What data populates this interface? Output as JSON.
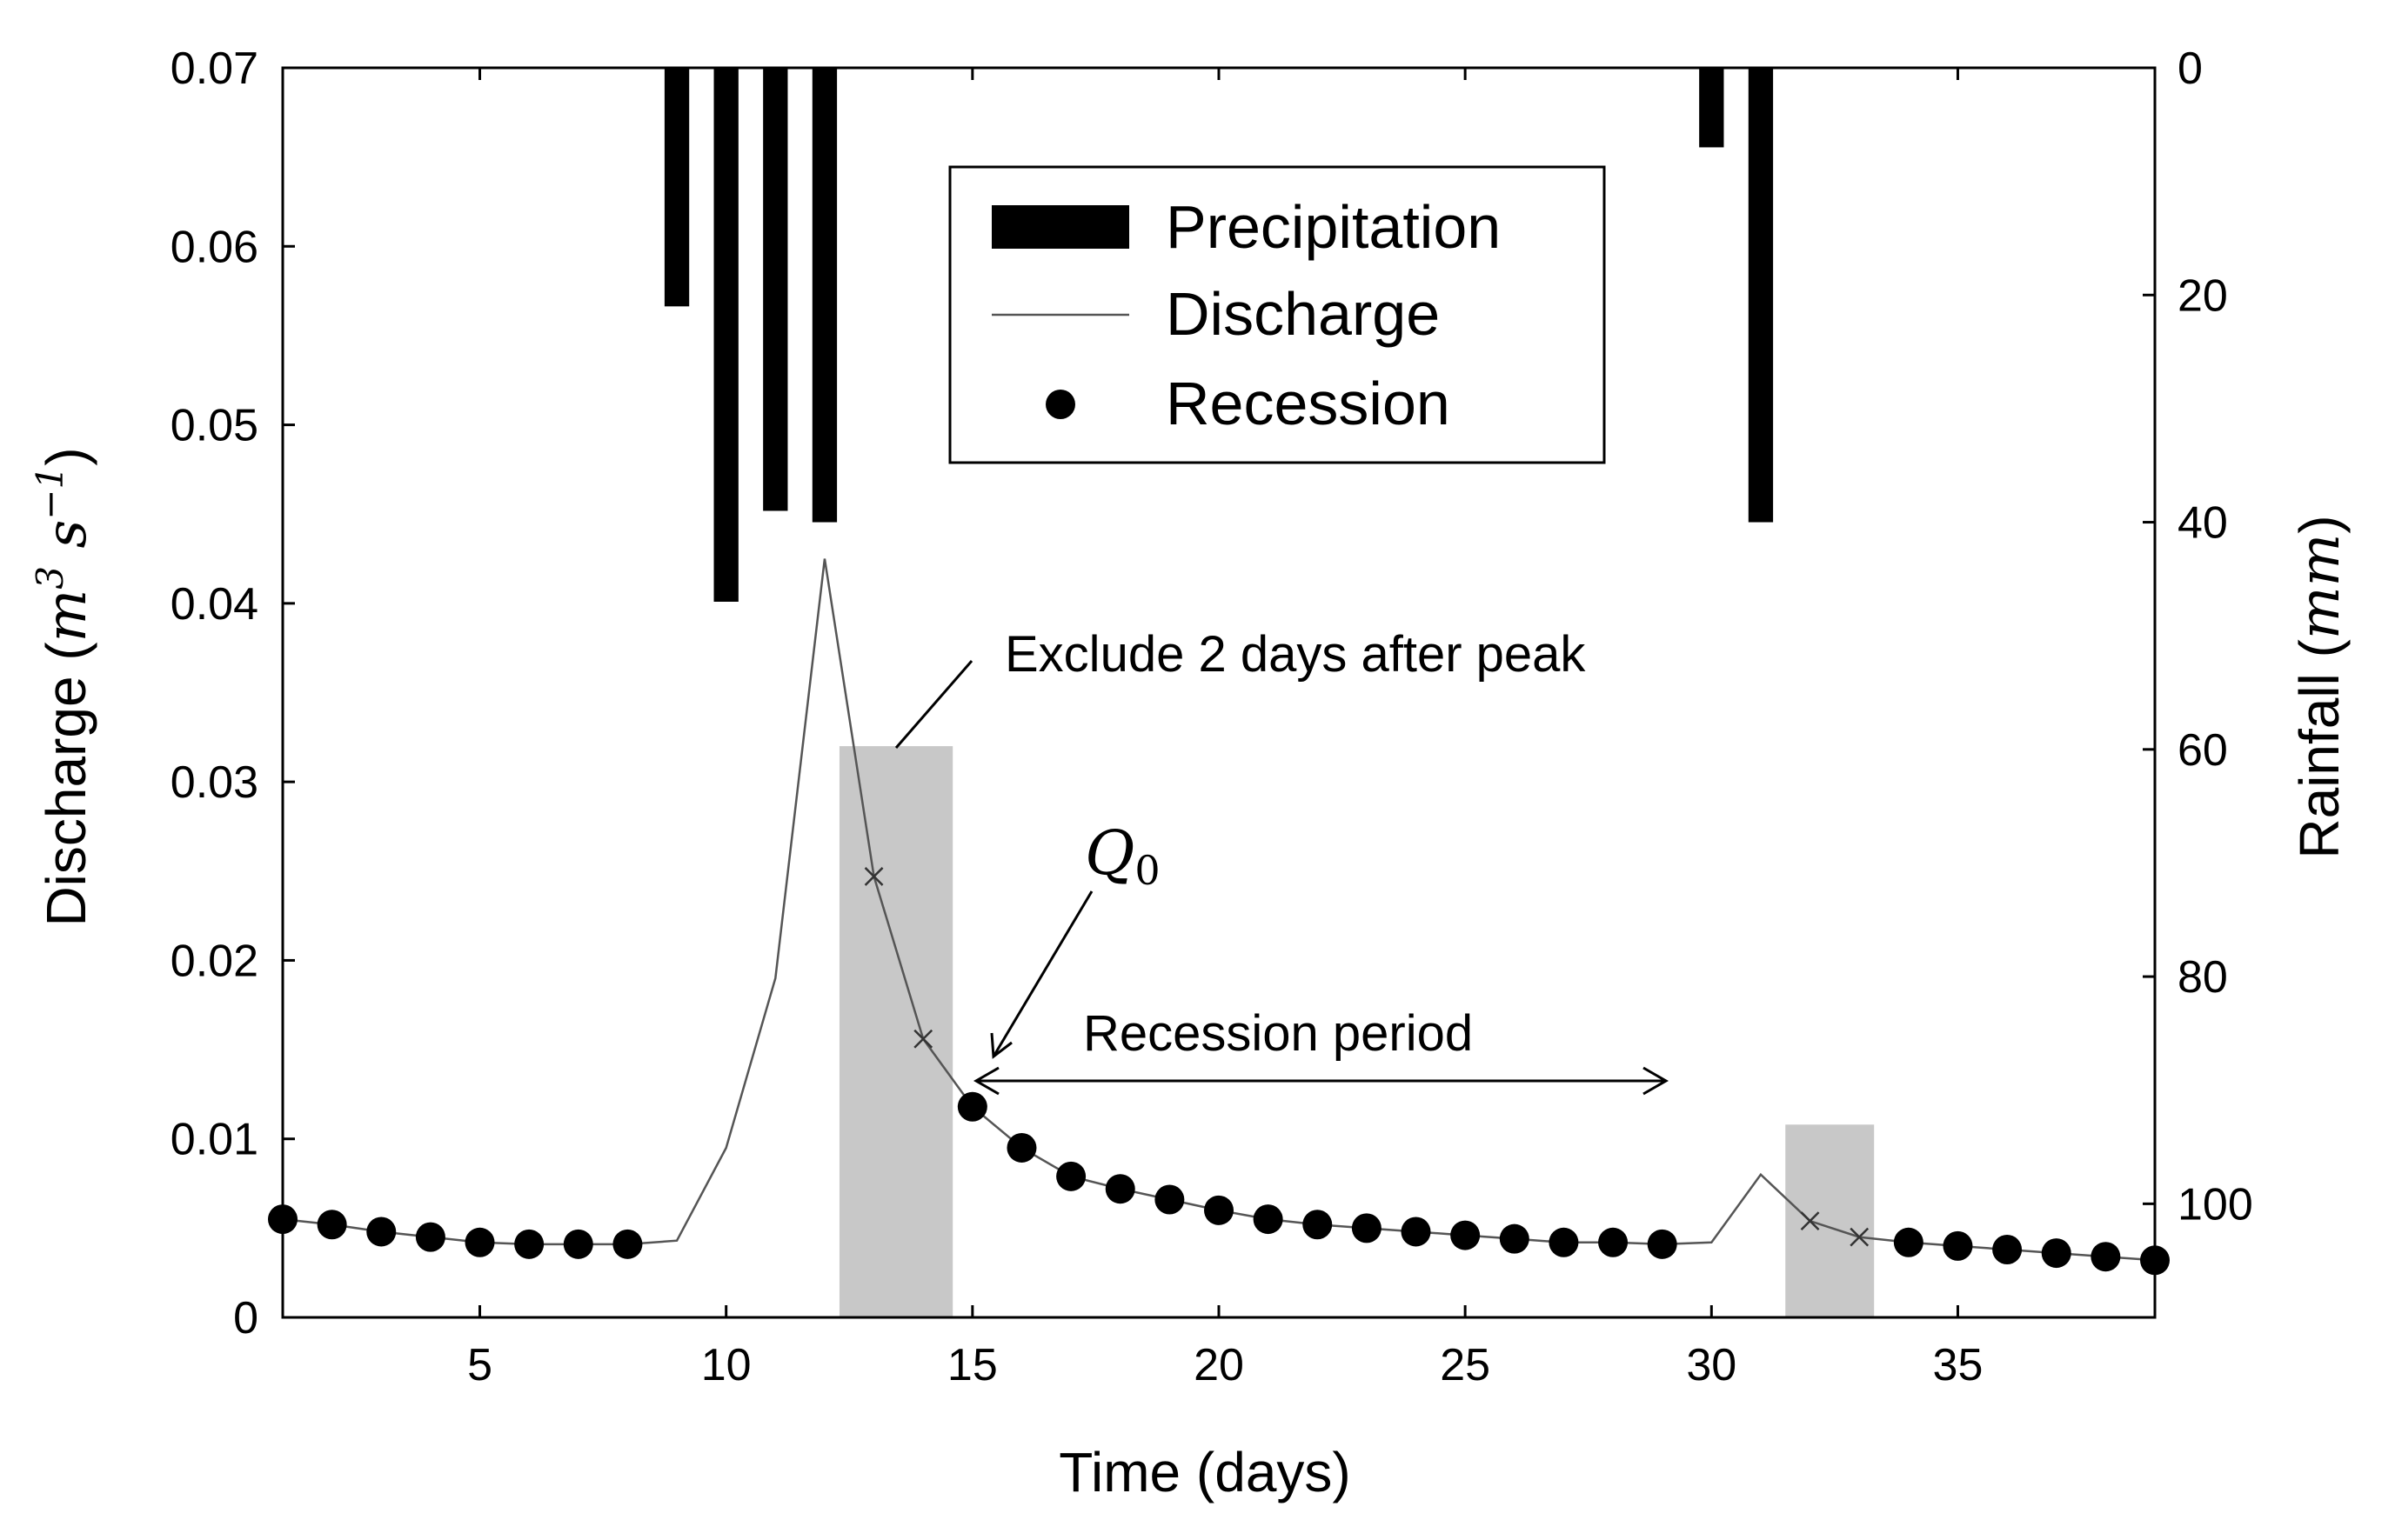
{
  "chart_data": {
    "type": "bar+line+scatter",
    "xlabel": "Time (days)",
    "ylabel_left": {
      "text": "Discharge (",
      "unit_m": "m",
      "unit_sup": "3",
      "unit_s": " s",
      "unit_sup2": "−1",
      "close": ")"
    },
    "ylabel_right": {
      "text": "Rainfall (",
      "unit": "mm",
      "close": ")"
    },
    "xlim": [
      1,
      39
    ],
    "ylim_left": [
      0,
      0.07
    ],
    "ylim_right": [
      0,
      110
    ],
    "right_axis_inverted": true,
    "x_ticks": [
      5,
      10,
      15,
      20,
      25,
      30,
      35
    ],
    "y_left_ticks": [
      "0",
      "0.01",
      "0.02",
      "0.03",
      "0.04",
      "0.05",
      "0.06",
      "0.07"
    ],
    "y_left_tick_values": [
      0,
      0.01,
      0.02,
      0.03,
      0.04,
      0.05,
      0.06,
      0.07
    ],
    "y_right_ticks": [
      "0",
      "20",
      "40",
      "60",
      "80",
      "100"
    ],
    "y_right_tick_values": [
      0,
      20,
      40,
      60,
      80,
      100
    ],
    "precipitation": {
      "name": "Precipitation",
      "x": [
        9,
        10,
        11,
        12,
        30,
        31
      ],
      "values": [
        21,
        47,
        39,
        40,
        7,
        40
      ]
    },
    "discharge": {
      "name": "Discharge",
      "x": [
        1,
        2,
        3,
        4,
        5,
        6,
        7,
        8,
        9,
        10,
        11,
        12,
        13,
        14,
        15,
        16,
        17,
        18,
        19,
        20,
        21,
        22,
        23,
        24,
        25,
        26,
        27,
        28,
        29,
        30,
        31,
        32,
        33,
        34,
        35,
        36,
        37,
        38,
        39
      ],
      "values": [
        0.0055,
        0.0052,
        0.0048,
        0.0045,
        0.0042,
        0.0041,
        0.0041,
        0.0041,
        0.0043,
        0.0095,
        0.019,
        0.0425,
        0.0247,
        0.0156,
        0.0118,
        0.0095,
        0.0079,
        0.0072,
        0.0066,
        0.006,
        0.0055,
        0.0052,
        0.005,
        0.0048,
        0.0046,
        0.0044,
        0.0042,
        0.0042,
        0.0041,
        0.0042,
        0.008,
        0.0054,
        0.0045,
        0.0042,
        0.004,
        0.0038,
        0.0036,
        0.0034,
        0.0032
      ]
    },
    "recession": {
      "name": "Recession",
      "x": [
        1,
        2,
        3,
        4,
        5,
        6,
        7,
        8,
        15,
        16,
        17,
        18,
        19,
        20,
        21,
        22,
        23,
        24,
        25,
        26,
        27,
        28,
        29,
        34,
        35,
        36,
        37,
        38,
        39
      ],
      "values": [
        0.0055,
        0.0052,
        0.0048,
        0.0045,
        0.0042,
        0.0041,
        0.0041,
        0.0041,
        0.0118,
        0.0095,
        0.0079,
        0.0072,
        0.0066,
        0.006,
        0.0055,
        0.0052,
        0.005,
        0.0048,
        0.0046,
        0.0044,
        0.0042,
        0.0042,
        0.0041,
        0.0042,
        0.004,
        0.0038,
        0.0036,
        0.0034,
        0.0032
      ]
    },
    "excluded": {
      "x": [
        13,
        14,
        32,
        33
      ],
      "values": [
        0.0247,
        0.0156,
        0.0054,
        0.0045
      ]
    },
    "shaded_regions": [
      {
        "x": [
          12.3,
          14.6
        ],
        "y": [
          0,
          0.032
        ]
      },
      {
        "x": [
          31.5,
          33.3
        ],
        "y": [
          0,
          0.0108
        ]
      }
    ],
    "annotations": {
      "exclude_text": "Exclude 2 days after peak",
      "q0_symbol": "Q",
      "q0_sub": "0",
      "recession_period": "Recession period"
    },
    "legend": {
      "placement": "top-center",
      "items": [
        "Precipitation",
        "Discharge",
        "Recession"
      ]
    },
    "colors": {
      "ink": "#000000",
      "shade": "#c8c8c8",
      "line": "#555555"
    }
  }
}
